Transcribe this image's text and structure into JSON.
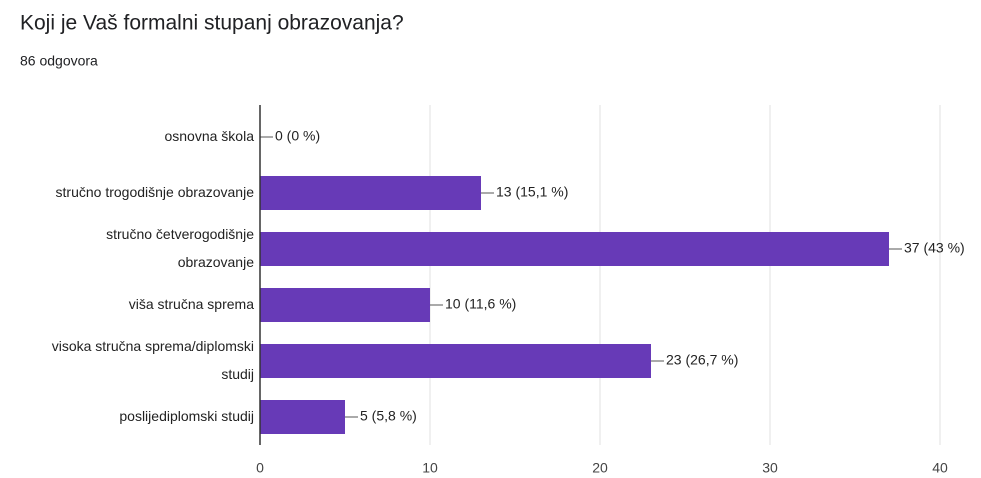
{
  "chart_data": {
    "type": "hbar",
    "title": "Koji je Vaš formalni stupanj obrazovanja?",
    "subtitle": "86 odgovora",
    "categories": [
      "osnovna škola",
      "stručno trogodišnje obrazovanje",
      "stručno četverogodišnje obrazovanje",
      "viša stručna sprema",
      "visoka stručna sprema/diplomski studij",
      "poslijediplomski studij"
    ],
    "values": [
      0,
      13,
      37,
      10,
      23,
      5
    ],
    "value_labels": [
      "0 (0 %)",
      "13 (15,1 %)",
      "37 (43 %)",
      "10 (11,6 %)",
      "23 (26,7 %)",
      "5 (5,8 %)"
    ],
    "color": "#673ab7",
    "xlim": [
      0,
      40
    ],
    "xticks": [
      0,
      10,
      20,
      30,
      40
    ],
    "grid": true
  }
}
